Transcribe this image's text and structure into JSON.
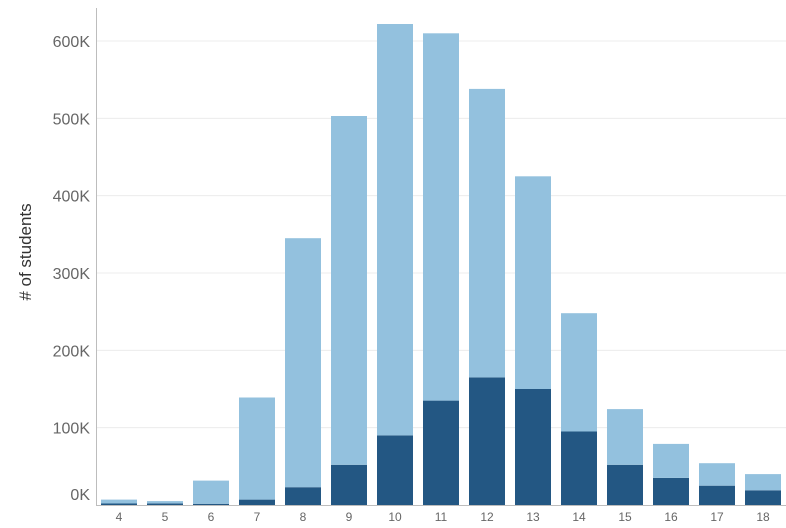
{
  "chart_data": {
    "type": "bar",
    "stacked": true,
    "title": "",
    "xlabel": "",
    "ylabel": "# of students",
    "ylim": [
      0,
      640000
    ],
    "yticks": [
      0,
      100000,
      200000,
      300000,
      400000,
      500000,
      600000
    ],
    "ytick_labels": [
      "0K",
      "100K",
      "200K",
      "300K",
      "400K",
      "500K",
      "600K"
    ],
    "categories": [
      "4",
      "5",
      "6",
      "7",
      "8",
      "9",
      "10",
      "11",
      "12",
      "13",
      "14",
      "15",
      "16",
      "17",
      "18"
    ],
    "series": [
      {
        "color": "#235783",
        "values": [
          2000,
          2000,
          1500,
          7000,
          23000,
          52000,
          90000,
          135000,
          165000,
          150000,
          95000,
          52000,
          35000,
          25000,
          19000
        ]
      },
      {
        "color": "#93c1de",
        "values": [
          5000,
          3000,
          30000,
          132000,
          322000,
          451000,
          532000,
          475000,
          373000,
          275000,
          153000,
          72000,
          44000,
          29000,
          21000
        ]
      }
    ],
    "grid": true,
    "legend": "none"
  }
}
